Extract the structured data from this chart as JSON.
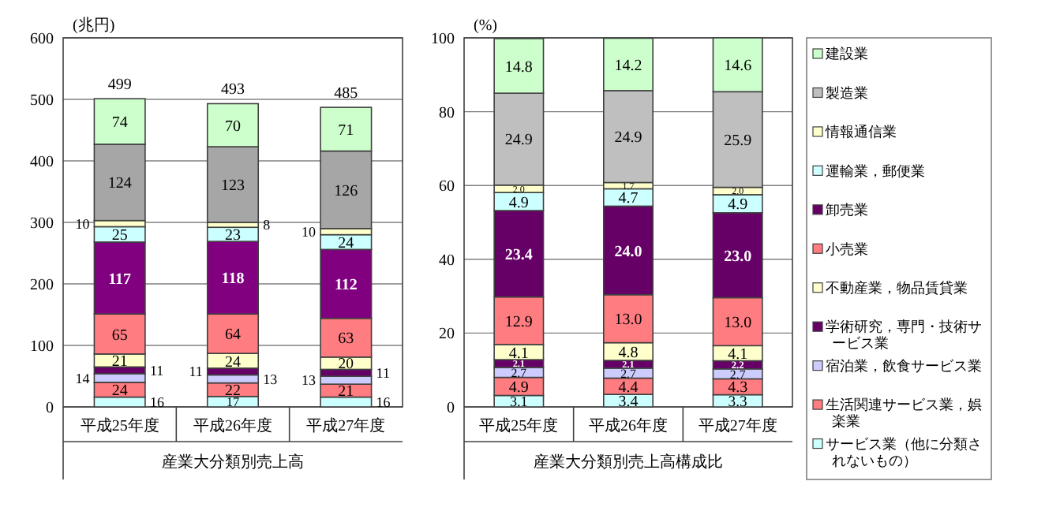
{
  "chart_data": [
    {
      "type": "bar",
      "stacked": true,
      "ylabel": "(兆円)",
      "xlabel": "産業大分類別売上高",
      "categories": [
        "平成25年度",
        "平成26年度",
        "平成27年度"
      ],
      "ylim": [
        0,
        600
      ],
      "yticks": [
        0,
        100,
        200,
        300,
        400,
        500,
        600
      ],
      "grid": "y",
      "data_labels": true,
      "totals": [
        "499",
        "493",
        "485"
      ],
      "legend": false,
      "series": [
        {
          "color": "#ccffff",
          "values": [
            16,
            17,
            16
          ]
        },
        {
          "color": "#ff7c80",
          "values": [
            24,
            22,
            21
          ]
        },
        {
          "color": "#ccccff",
          "values": [
            14,
            13,
            13
          ]
        },
        {
          "color": "#660066",
          "values": [
            11,
            11,
            11
          ]
        },
        {
          "color": "#ffffcc",
          "values": [
            21,
            24,
            20
          ]
        },
        {
          "color": "#ff7c80",
          "values": [
            65,
            64,
            63
          ]
        },
        {
          "color": "#800080",
          "values": [
            117,
            118,
            112
          ]
        },
        {
          "color": "#ccffff",
          "values": [
            25,
            23,
            24
          ]
        },
        {
          "color": "#ffffcc",
          "values": [
            10,
            8,
            10
          ]
        },
        {
          "color": "#a6a6a6",
          "values": [
            124,
            123,
            126
          ]
        },
        {
          "color": "#ccffcc",
          "values": [
            74,
            70,
            71
          ]
        }
      ]
    },
    {
      "type": "bar",
      "stacked": true,
      "ylabel": "(%)",
      "xlabel": "産業大分類別売上高構成比",
      "categories": [
        "平成25年度",
        "平成26年度",
        "平成27年度"
      ],
      "ylim": [
        0,
        100
      ],
      "yticks": [
        0,
        20,
        40,
        60,
        80,
        100
      ],
      "grid": "y",
      "data_labels": true,
      "legend": "right",
      "series": [
        {
          "name": "サービス業（他に分類されないもの）",
          "color": "#ccffff",
          "values": [
            3.1,
            3.4,
            3.3
          ]
        },
        {
          "name": "生活関連サービス業，娯楽業",
          "color": "#ff7c80",
          "values": [
            4.9,
            4.4,
            4.3
          ]
        },
        {
          "name": "宿泊業，飲食サービス業",
          "color": "#ccccff",
          "values": [
            2.7,
            2.7,
            2.7
          ]
        },
        {
          "name": "学術研究，専門・技術サービス業",
          "color": "#660066",
          "values": [
            2.1,
            2.1,
            2.2
          ]
        },
        {
          "name": "不動産業，物品賃貸業",
          "color": "#ffffcc",
          "values": [
            4.1,
            4.8,
            4.1
          ]
        },
        {
          "name": "小売業",
          "color": "#ff7c80",
          "values": [
            12.9,
            13.0,
            13.0
          ],
          "value_labels": [
            "12.9",
            "13.0",
            "13.0"
          ]
        },
        {
          "name": "卸売業",
          "color": "#660066",
          "values": [
            23.4,
            24.0,
            23.0
          ],
          "value_labels": [
            "23.4",
            "24.0",
            "23.0"
          ]
        },
        {
          "name": "運輸業，郵便業",
          "color": "#ccffff",
          "values": [
            4.9,
            4.7,
            4.9
          ]
        },
        {
          "name": "情報通信業",
          "color": "#ffffcc",
          "values": [
            2.0,
            1.7,
            2.0
          ],
          "value_labels": [
            "2.0",
            "1.7",
            "2.0"
          ]
        },
        {
          "name": "製造業",
          "color": "#bfbfbf",
          "values": [
            24.9,
            24.9,
            25.9
          ]
        },
        {
          "name": "建設業",
          "color": "#ccffcc",
          "values": [
            14.8,
            14.2,
            14.6
          ]
        }
      ]
    }
  ]
}
